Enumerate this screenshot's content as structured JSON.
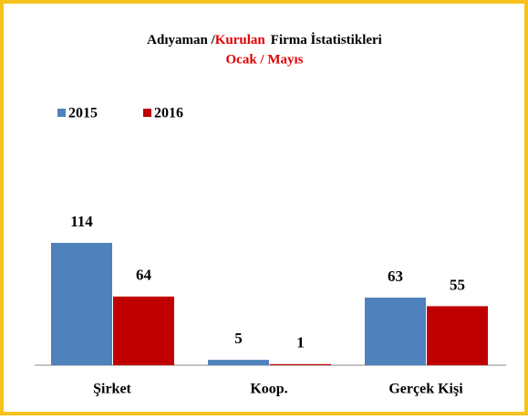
{
  "chart_data": {
    "type": "bar",
    "title": [
      "Adıyaman /",
      "Kurulan",
      "Firma İstatistikleri"
    ],
    "subtitle": "Ocak / Mayıs",
    "categories": [
      "Şirket",
      "Koop.",
      "Gerçek Kişi"
    ],
    "series": [
      {
        "name": "2015",
        "color": "#4f81bd",
        "values": [
          114,
          5,
          63
        ]
      },
      {
        "name": "2016",
        "color": "#c00000",
        "values": [
          64,
          1,
          55
        ]
      }
    ],
    "legend": "top-left"
  }
}
